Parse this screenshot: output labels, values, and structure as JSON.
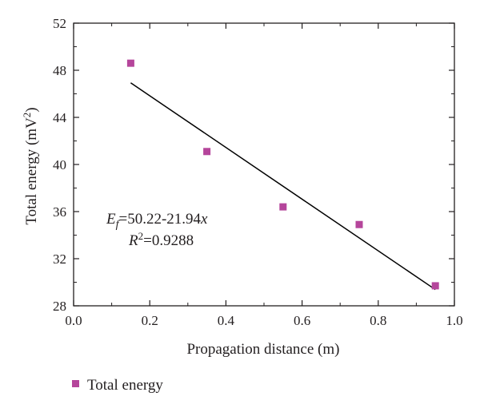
{
  "chart_data": {
    "type": "scatter",
    "xlabel": "Propagation distance (m)",
    "ylabel": {
      "prefix": "Total energy (mV",
      "sup": "2",
      "suffix": ")"
    },
    "xlim": [
      0.0,
      1.0
    ],
    "ylim": [
      28,
      52
    ],
    "xticks": [
      0.0,
      0.2,
      0.4,
      0.6,
      0.8,
      1.0
    ],
    "xtick_labels": [
      "0.0",
      "0.2",
      "0.4",
      "0.6",
      "0.8",
      "1.0"
    ],
    "yticks": [
      28,
      32,
      36,
      40,
      44,
      48,
      52
    ],
    "ytick_labels": [
      "28",
      "32",
      "36",
      "40",
      "44",
      "48",
      "52"
    ],
    "grid": false,
    "legend_position": "bottom-left, below plot",
    "series": [
      {
        "name": "Total energy",
        "marker": "square",
        "color": "#b5459b",
        "x": [
          0.15,
          0.35,
          0.55,
          0.75,
          0.95
        ],
        "y": [
          48.6,
          41.1,
          36.4,
          34.9,
          29.7
        ]
      }
    ],
    "fit": {
      "color": "#000000",
      "intercept": 50.22,
      "slope": -21.94,
      "x_range": [
        0.15,
        0.95
      ]
    },
    "annotations": {
      "equation": {
        "var": "E",
        "sub": "f",
        "rhs": "=50.22-21.94",
        "xvar": "x"
      },
      "r2": {
        "var": "R",
        "sup": "2",
        "rhs": "=0.9288"
      }
    }
  }
}
